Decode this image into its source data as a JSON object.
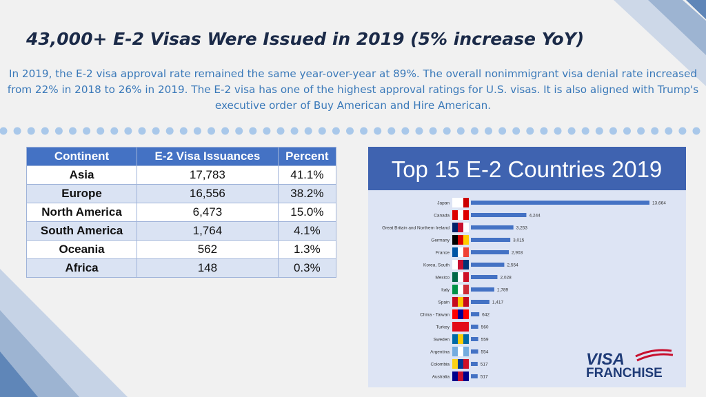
{
  "header": {
    "title": "43,000+ E-2 Visas Were Issued in 2019 (5% increase YoY)",
    "text": "In 2019, the E-2 visa approval rate remained the same year-over-year at 89%. The overall nonimmigrant visa denial rate increased from 22% in 2018 to 26% in 2019. The E-2 visa has one of the highest approval ratings for U.S. visas. It is also aligned with Trump's executive order of Buy American and Hire American."
  },
  "table": {
    "columns": [
      "Continent",
      "E-2 Visa Issuances",
      "Percent"
    ],
    "rows": [
      [
        "Asia",
        "17,783",
        "41.1%"
      ],
      [
        "Europe",
        "16,556",
        "38.2%"
      ],
      [
        "North America",
        "6,473",
        "15.0%"
      ],
      [
        "South America",
        "1,764",
        "4.1%"
      ],
      [
        "Oceania",
        "562",
        "1.3%"
      ],
      [
        "Africa",
        "148",
        "0.3%"
      ]
    ]
  },
  "chart_data": {
    "type": "bar",
    "orientation": "horizontal",
    "title": "Top 15 E-2 Countries 2019",
    "categories": [
      "Japan",
      "Canada",
      "Great Britain and Northern Ireland",
      "Germany",
      "France",
      "Korea, South",
      "Mexico",
      "Italy",
      "Spain",
      "China - Taiwan",
      "Turkey",
      "Sweden",
      "Argentina",
      "Colombia",
      "Australia"
    ],
    "values": [
      13664,
      4244,
      3253,
      3015,
      2903,
      2554,
      2028,
      1789,
      1417,
      642,
      560,
      559,
      554,
      517,
      517
    ],
    "value_labels": [
      "13,664",
      "4,244",
      "3,253",
      "3,015",
      "2,903",
      "2,554",
      "2,028",
      "1,789",
      "1,417",
      "642",
      "560",
      "559",
      "554",
      "517",
      "517"
    ],
    "color": "#4472c4"
  },
  "logo": {
    "line1": "VISA",
    "line2": "FRANCHISE"
  }
}
